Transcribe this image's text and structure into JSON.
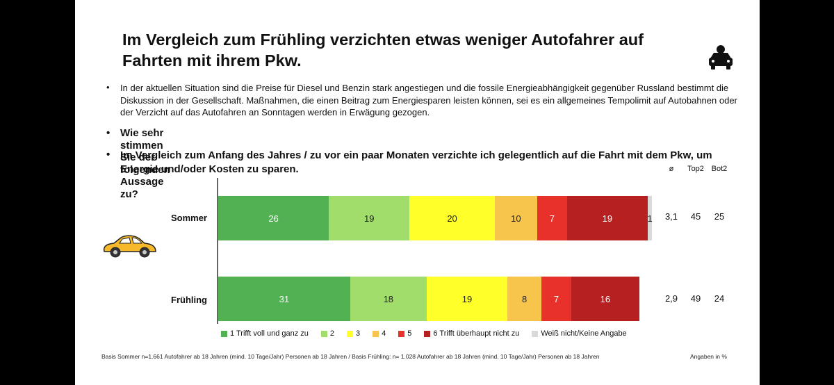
{
  "slide": {
    "title": "Im Vergleich zum Frühling verzichten etwas weniger Autofahrer auf Fahrten mit ihrem Pkw.",
    "bullets": [
      "In der aktuellen Situation sind die Preise für Diesel und Benzin stark angestiegen und die fossile Energieabhängigkeit gegenüber Russland bestimmt die Diskussion in der Gesellschaft. Maßnahmen, die einen Beitrag zum Energiesparen leisten können, sei es ein allgemeines Tempolimit auf Autobahnen oder der Verzicht auf das Autofahren an Sonntagen werden in Erwägung gezogen.",
      "Wie sehr stimmen Sie der folgenden Aussage zu?",
      "Im Vergleich zum Anfang des Jahres / zu vor ein paar Monaten verzichte ich gelegentlich auf die Fahrt mit dem Pkw, um Energie und/oder Kosten zu sparen."
    ],
    "bullet_char": "•",
    "footnote": "Basis Sommer n=1.661 Autofahrer ab 18 Jahren (mind. 10 Tage/Jahr) Personen ab 18 Jahren / Basis Frühling: n= 1.028 Autofahrer ab 18 Jahren (mind. 10 Tage/Jahr) Personen ab 18 Jahren",
    "footnote_right": "Angaben in %",
    "icons": [
      "car-person-icon",
      "yellow-car-icon"
    ]
  },
  "chart_data": {
    "type": "bar",
    "orientation": "horizontal-stacked-100",
    "categories": [
      "Sommer",
      "Frühling"
    ],
    "series": [
      {
        "name": "1 Trifft voll und ganz zu",
        "color": "#52b152",
        "values": [
          26,
          31
        ]
      },
      {
        "name": "2",
        "color": "#a0dd6a",
        "values": [
          19,
          18
        ]
      },
      {
        "name": "3",
        "color": "#ffff2a",
        "values": [
          20,
          19
        ]
      },
      {
        "name": "4",
        "color": "#f7c54c",
        "values": [
          10,
          8
        ]
      },
      {
        "name": "5",
        "color": "#e8312a",
        "values": [
          7,
          7
        ]
      },
      {
        "name": "6 Trifft überhaupt nicht zu",
        "color": "#b62020",
        "values": [
          19,
          16
        ]
      },
      {
        "name": "Weiß nicht/Keine Angabe",
        "color": "#d9d9d9",
        "values": [
          1,
          0
        ]
      }
    ],
    "data_labels": [
      [
        "26",
        "19",
        "20",
        "10",
        "7",
        "19",
        "1"
      ],
      [
        "31",
        "18",
        "19",
        "8",
        "7",
        "16",
        ""
      ]
    ],
    "stats_headers": [
      "ø",
      "Top2",
      "Bot2"
    ],
    "stats": [
      {
        "category": "Sommer",
        "mean": "3,1",
        "top2": "45",
        "bot2": "25"
      },
      {
        "category": "Frühling",
        "mean": "2,9",
        "top2": "49",
        "bot2": "24"
      }
    ],
    "legend_position": "bottom",
    "xlim": [
      0,
      100
    ]
  }
}
